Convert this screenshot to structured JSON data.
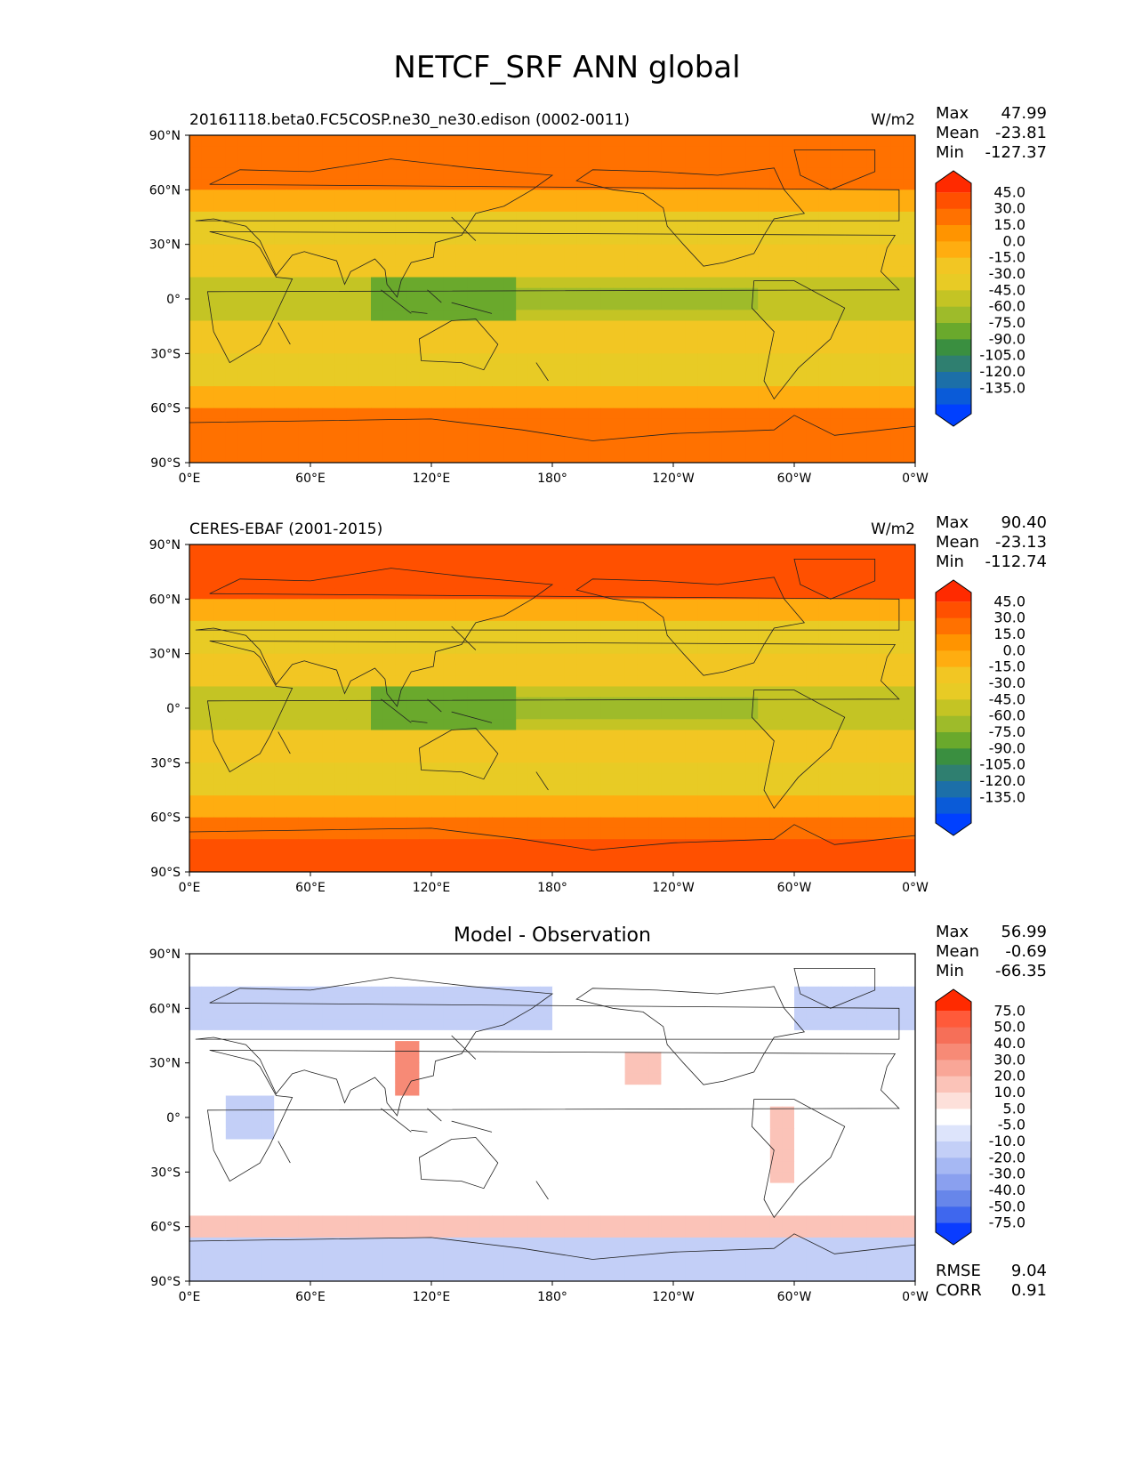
{
  "title": "NETCF_SRF ANN global",
  "lat_labels": [
    "90°N",
    "60°N",
    "30°N",
    "0°",
    "30°S",
    "60°S",
    "90°S"
  ],
  "lon_labels": [
    "0°E",
    "60°E",
    "120°E",
    "180°",
    "120°W",
    "60°W",
    "0°W"
  ],
  "panels": [
    {
      "id": "model",
      "left_title": "20161118.beta0.FC5COSP.ne30_ne30.edison (0002-0011)",
      "center_title": "",
      "units": "W/m2",
      "stats": [
        {
          "label": "Max",
          "value": "47.99"
        },
        {
          "label": "Mean",
          "value": "-23.81"
        },
        {
          "label": "Min",
          "value": "-127.37"
        }
      ],
      "colorbar": {
        "ticks": [
          "45.0",
          "30.0",
          "15.0",
          "0.0",
          "-15.0",
          "-30.0",
          "-45.0",
          "-60.0",
          "-75.0",
          "-90.0",
          "-105.0",
          "-120.0",
          "-135.0"
        ],
        "colors": [
          "#ff2a00",
          "#ff5000",
          "#ff7100",
          "#ff9400",
          "#ffad10",
          "#f2c623",
          "#e8cb25",
          "#c4c424",
          "#9ebb2a",
          "#6aa92c",
          "#3a8f40",
          "#2f7f70",
          "#1c6fa8",
          "#0a5bd8",
          "#0040ff"
        ]
      },
      "field": "model",
      "bottom_stats": []
    },
    {
      "id": "observation",
      "left_title": "CERES-EBAF (2001-2015)",
      "center_title": "",
      "units": "W/m2",
      "stats": [
        {
          "label": "Max",
          "value": "90.40"
        },
        {
          "label": "Mean",
          "value": "-23.13"
        },
        {
          "label": "Min",
          "value": "-112.74"
        }
      ],
      "colorbar": {
        "ticks": [
          "45.0",
          "30.0",
          "15.0",
          "0.0",
          "-15.0",
          "-30.0",
          "-45.0",
          "-60.0",
          "-75.0",
          "-90.0",
          "-105.0",
          "-120.0",
          "-135.0"
        ],
        "colors": [
          "#ff2a00",
          "#ff5000",
          "#ff7100",
          "#ff9400",
          "#ffad10",
          "#f2c623",
          "#e8cb25",
          "#c4c424",
          "#9ebb2a",
          "#6aa92c",
          "#3a8f40",
          "#2f7f70",
          "#1c6fa8",
          "#0a5bd8",
          "#0040ff"
        ]
      },
      "field": "obs",
      "bottom_stats": []
    },
    {
      "id": "difference",
      "left_title": "",
      "center_title": "Model - Observation",
      "units": "",
      "stats": [
        {
          "label": "Max",
          "value": "56.99"
        },
        {
          "label": "Mean",
          "value": "-0.69"
        },
        {
          "label": "Min",
          "value": "-66.35"
        }
      ],
      "colorbar": {
        "ticks": [
          "75.0",
          "50.0",
          "40.0",
          "30.0",
          "20.0",
          "10.0",
          "5.0",
          "-5.0",
          "-10.0",
          "-20.0",
          "-30.0",
          "-40.0",
          "-50.0",
          "-75.0"
        ],
        "colors": [
          "#ff2a00",
          "#ff5a3a",
          "#f66f58",
          "#f78a76",
          "#f9a697",
          "#fbc3b8",
          "#fde0da",
          "#ffffff",
          "#dde4fb",
          "#c3cff7",
          "#a6b8f3",
          "#8aa0ef",
          "#6786ea",
          "#3f67ee",
          "#0a3cff"
        ]
      },
      "field": "diff",
      "bottom_stats": [
        {
          "label": "RMSE",
          "value": "9.04"
        },
        {
          "label": "CORR",
          "value": "0.91"
        }
      ]
    }
  ]
}
